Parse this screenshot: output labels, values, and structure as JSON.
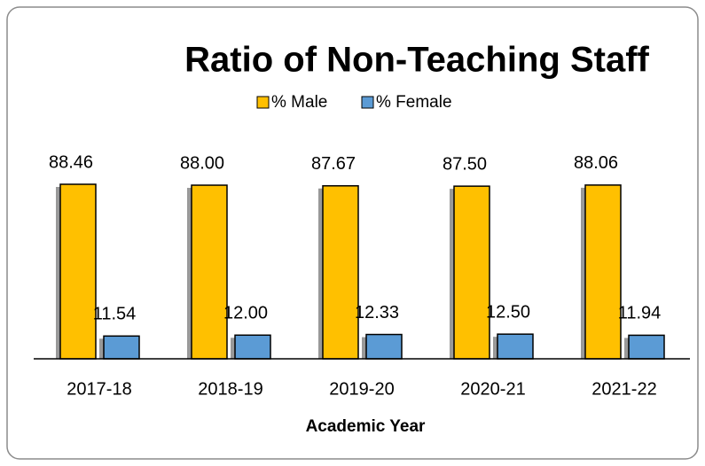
{
  "chart_data": {
    "type": "bar",
    "title": "Ratio of Non-Teaching Staff",
    "x_label": "Academic Year",
    "categories": [
      "2017-18",
      "2018-19",
      "2019-20",
      "2020-21",
      "2021-22"
    ],
    "series": [
      {
        "name": "% Male",
        "color": "#ffc000",
        "values": [
          88.46,
          88.0,
          87.67,
          87.5,
          88.06
        ],
        "value_labels": [
          "88.46",
          "88.00",
          "87.67",
          "87.50",
          "88.06"
        ]
      },
      {
        "name": "% Female",
        "color": "#5b9bd5",
        "values": [
          11.54,
          12.0,
          12.33,
          12.5,
          11.94
        ],
        "value_labels": [
          "11.54",
          "12.00",
          "12.33",
          "12.50",
          "11.94"
        ]
      }
    ],
    "legend": "top"
  }
}
